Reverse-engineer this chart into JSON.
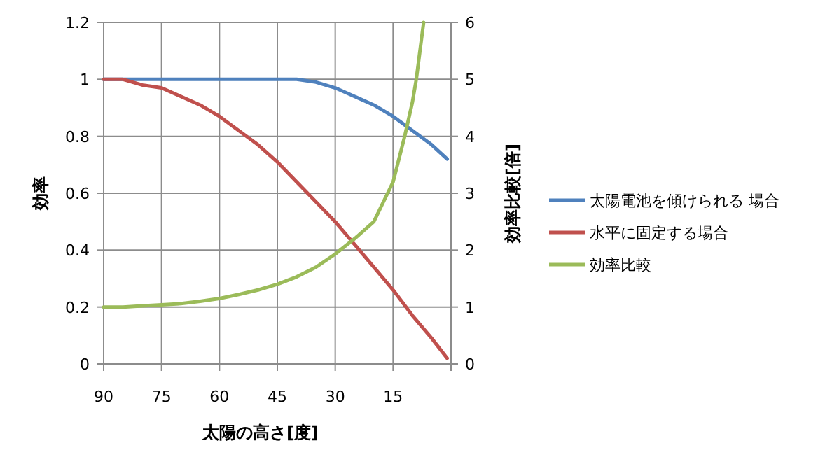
{
  "chart_data": {
    "type": "line",
    "xlabel": "太陽の高さ[度]",
    "ylabel": "効率",
    "y2label": "効率比較[倍]",
    "x": [
      90,
      85,
      80,
      75,
      70,
      65,
      60,
      55,
      50,
      45,
      40,
      35,
      30,
      25,
      20,
      15,
      10,
      5,
      1
    ],
    "series": [
      {
        "name": "太陽電池を傾けられる 場合",
        "color": "#4f81bd",
        "values": [
          1,
          1,
          1,
          1,
          1,
          1,
          1,
          1,
          1,
          1,
          1.0,
          0.99,
          0.97,
          0.94,
          0.91,
          0.87,
          0.82,
          0.77,
          0.72
        ]
      },
      {
        "name": "水平に固定する場合",
        "color": "#c0504d",
        "values": [
          1,
          1.0,
          0.98,
          0.97,
          0.94,
          0.91,
          0.87,
          0.82,
          0.77,
          0.71,
          0.64,
          0.57,
          0.5,
          0.42,
          0.34,
          0.26,
          0.17,
          0.09,
          0.02
        ]
      },
      {
        "name": "効率比較",
        "color": "#9bbb59",
        "axis": "y2",
        "x": [
          90,
          85,
          80,
          75,
          70,
          65,
          60,
          55,
          50,
          45,
          40,
          35,
          30,
          25,
          20,
          15,
          12,
          10,
          9,
          7.1
        ],
        "values": [
          1,
          1.0,
          1.02,
          1.04,
          1.06,
          1.1,
          1.15,
          1.22,
          1.3,
          1.4,
          1.53,
          1.7,
          1.93,
          2.2,
          2.5,
          3.2,
          4.0,
          4.6,
          5.0,
          6.0
        ]
      }
    ],
    "xlim": [
      90,
      0
    ],
    "xticks": [
      90,
      75,
      60,
      45,
      30,
      15,
      {
        "value": 0,
        "label": null
      }
    ],
    "ylim": [
      0,
      1.2
    ],
    "yticks": [
      0,
      0.2,
      0.4,
      0.6,
      0.8,
      1,
      1.2
    ],
    "y2lim": [
      0,
      6
    ],
    "y2ticks": [
      0,
      1,
      2,
      3,
      4,
      5,
      6
    ],
    "grid": true,
    "legend": "right"
  }
}
